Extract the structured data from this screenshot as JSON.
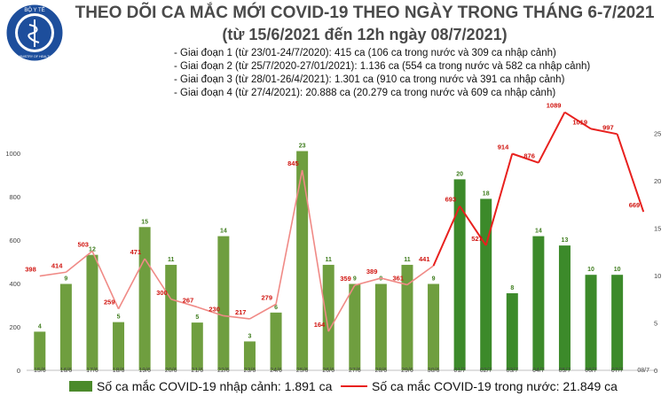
{
  "header": {
    "title_line1": "THEO DÕI CA MẮC MỚI COVID-19 THEO NGÀY TRONG THÁNG 6-7/2021",
    "title_line2": "(từ 15/6/2021 đến 12h ngày 08/7/2021)",
    "logo_top_text": "BỘ Y TẾ",
    "logo_bottom_text": "MINISTRY OF HEALTH"
  },
  "notes": [
    "- Giai đoạn 1 (từ 23/01-24/7/2020): 415 ca (106 ca trong nước và 309 ca nhập cảnh)",
    "- Giai đoạn 2 (từ 25/7/2020-27/01/2021): 1.136 ca (554 ca trong nước và 582 ca nhập cảnh)",
    "- Giai đoạn 3 (từ 28/01-26/4/2021): 1.301 ca (910 ca trong nước và 391 ca nhập cảnh)",
    "- Giai đoạn 4 (từ 27/4/2021): 20.888 ca (20.279 ca trong nước và 609 ca nhập cảnh)"
  ],
  "legend": {
    "bar_label": "Số ca mắc COVID-19 nhập cảnh: 1.891 ca",
    "line_label": "Số ca mắc COVID-19 trong nước: 21.849 ca"
  },
  "colors": {
    "bar_june": "#6f9e3f",
    "bar_july": "#3c8a2a",
    "line": "#e8201e",
    "line_june": "#f08a86",
    "bar_label": "#3f7d1e",
    "line_label": "#d0140f",
    "title": "#4a4a4a"
  },
  "chart_data": {
    "type": "bar",
    "categories": [
      "15/6",
      "16/6",
      "17/6",
      "18/6",
      "19/6",
      "20/6",
      "21/6",
      "22/6",
      "23/6",
      "24/6",
      "25/6",
      "26/6",
      "27/6",
      "28/6",
      "29/6",
      "30/6",
      "01/7",
      "02/7",
      "03/7",
      "04/7",
      "05/7",
      "06/7",
      "07/7",
      "08/7"
    ],
    "series": [
      {
        "axis": "left",
        "values": [
          178,
          398,
          532,
          222,
          660,
          486,
          220,
          618,
          133,
          266,
          1010,
          486,
          398,
          398,
          486,
          398,
          880,
          790,
          355,
          618,
          575,
          440,
          440,
          null
        ],
        "labels": [
          "4",
          "9",
          "12",
          "5",
          "15",
          "11",
          "5",
          "14",
          "3",
          "6",
          "23",
          "11",
          "9",
          "9",
          "11",
          "9",
          "20",
          "18",
          "8",
          "14",
          "13",
          "10",
          "10",
          ""
        ]
      },
      {
        "axis": "right",
        "values": [
          398,
          414,
          503,
          259,
          471,
          300,
          267,
          230,
          217,
          279,
          845,
          164,
          359,
          389,
          361,
          441,
          693,
          527,
          914,
          876,
          1089,
          1019,
          997,
          669
        ]
      }
    ],
    "left_axis": {
      "ticks": [
        0,
        200,
        400,
        600,
        800,
        1000
      ],
      "ylim": [
        0,
        1100
      ]
    },
    "right_axis": {
      "ticks": [
        0,
        5,
        10,
        15,
        20,
        25
      ],
      "ylim": [
        0,
        27.5
      ]
    },
    "grid": false
  }
}
